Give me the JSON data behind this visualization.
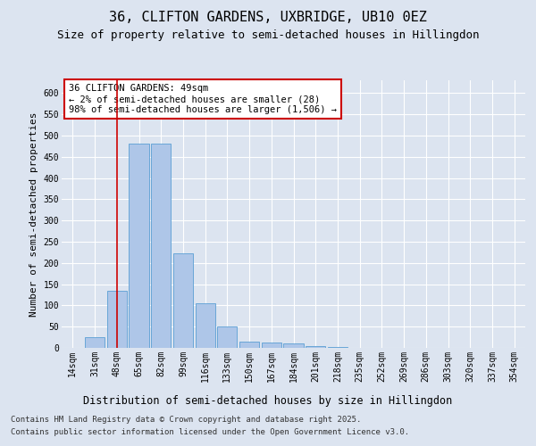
{
  "title1": "36, CLIFTON GARDENS, UXBRIDGE, UB10 0EZ",
  "title2": "Size of property relative to semi-detached houses in Hillingdon",
  "xlabel": "Distribution of semi-detached houses by size in Hillingdon",
  "ylabel": "Number of semi-detached properties",
  "categories": [
    "14sqm",
    "31sqm",
    "48sqm",
    "65sqm",
    "82sqm",
    "99sqm",
    "116sqm",
    "133sqm",
    "150sqm",
    "167sqm",
    "184sqm",
    "201sqm",
    "218sqm",
    "235sqm",
    "252sqm",
    "269sqm",
    "286sqm",
    "303sqm",
    "320sqm",
    "337sqm",
    "354sqm"
  ],
  "values": [
    0,
    25,
    135,
    480,
    480,
    223,
    105,
    50,
    15,
    12,
    11,
    5,
    3,
    1,
    0,
    0,
    0,
    0,
    0,
    0,
    0
  ],
  "bar_color": "#aec6e8",
  "bar_edge_color": "#5a9fd4",
  "vline_x": 2,
  "vline_color": "#cc0000",
  "annotation_text": "36 CLIFTON GARDENS: 49sqm\n← 2% of semi-detached houses are smaller (28)\n98% of semi-detached houses are larger (1,506) →",
  "annotation_box_color": "#ffffff",
  "annotation_box_edge": "#cc0000",
  "footer1": "Contains HM Land Registry data © Crown copyright and database right 2025.",
  "footer2": "Contains public sector information licensed under the Open Government Licence v3.0.",
  "ylim": [
    0,
    630
  ],
  "yticks": [
    0,
    50,
    100,
    150,
    200,
    250,
    300,
    350,
    400,
    450,
    500,
    550,
    600
  ],
  "background_color": "#dce4f0",
  "plot_bg_color": "#dce4f0",
  "title1_fontsize": 11,
  "title2_fontsize": 9,
  "xlabel_fontsize": 8.5,
  "ylabel_fontsize": 8,
  "tick_fontsize": 7,
  "annotation_fontsize": 7.5,
  "footer_fontsize": 6.5
}
